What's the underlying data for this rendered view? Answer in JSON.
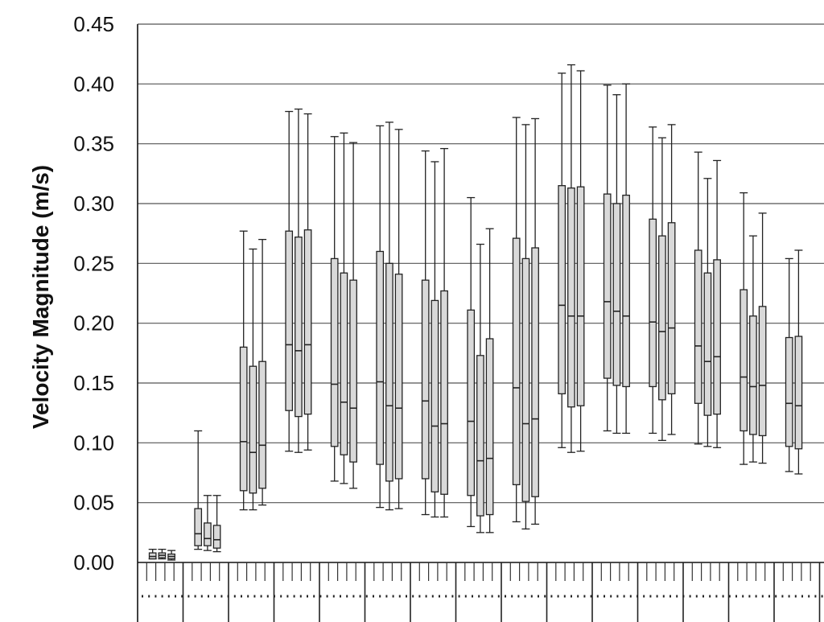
{
  "chart_data": {
    "type": "boxplot",
    "ylabel": "Velocity Magnitude (m/s)",
    "ylim": [
      0,
      0.45
    ],
    "yticks": [
      "0.00",
      "0.05",
      "0.10",
      "0.15",
      "0.20",
      "0.25",
      "0.30",
      "0.35",
      "0.40",
      "0.45"
    ],
    "grid": true,
    "box_color": "#d9d9d9",
    "groups": [
      {
        "boxes": [
          {
            "min": 0.003,
            "q1": 0.003,
            "median": 0.005,
            "q3": 0.008,
            "max": 0.011
          },
          {
            "min": 0.003,
            "q1": 0.004,
            "median": 0.006,
            "q3": 0.008,
            "max": 0.011
          },
          {
            "min": 0.002,
            "q1": 0.003,
            "median": 0.005,
            "q3": 0.007,
            "max": 0.01
          }
        ]
      },
      {
        "boxes": [
          {
            "min": 0.011,
            "q1": 0.014,
            "median": 0.024,
            "q3": 0.045,
            "max": 0.11
          },
          {
            "min": 0.01,
            "q1": 0.014,
            "median": 0.02,
            "q3": 0.033,
            "max": 0.056
          },
          {
            "min": 0.009,
            "q1": 0.012,
            "median": 0.019,
            "q3": 0.031,
            "max": 0.056
          }
        ]
      },
      {
        "boxes": [
          {
            "min": 0.044,
            "q1": 0.06,
            "median": 0.101,
            "q3": 0.18,
            "max": 0.277
          },
          {
            "min": 0.044,
            "q1": 0.058,
            "median": 0.092,
            "q3": 0.164,
            "max": 0.262
          },
          {
            "min": 0.048,
            "q1": 0.062,
            "median": 0.098,
            "q3": 0.168,
            "max": 0.27
          }
        ]
      },
      {
        "boxes": [
          {
            "min": 0.093,
            "q1": 0.127,
            "median": 0.182,
            "q3": 0.277,
            "max": 0.377
          },
          {
            "min": 0.092,
            "q1": 0.122,
            "median": 0.177,
            "q3": 0.272,
            "max": 0.379
          },
          {
            "min": 0.094,
            "q1": 0.124,
            "median": 0.182,
            "q3": 0.278,
            "max": 0.375
          }
        ]
      },
      {
        "boxes": [
          {
            "min": 0.068,
            "q1": 0.097,
            "median": 0.149,
            "q3": 0.254,
            "max": 0.356
          },
          {
            "min": 0.066,
            "q1": 0.09,
            "median": 0.134,
            "q3": 0.242,
            "max": 0.359
          },
          {
            "min": 0.062,
            "q1": 0.084,
            "median": 0.129,
            "q3": 0.236,
            "max": 0.351
          }
        ]
      },
      {
        "boxes": [
          {
            "min": 0.046,
            "q1": 0.082,
            "median": 0.151,
            "q3": 0.26,
            "max": 0.365
          },
          {
            "min": 0.044,
            "q1": 0.068,
            "median": 0.131,
            "q3": 0.25,
            "max": 0.368
          },
          {
            "min": 0.045,
            "q1": 0.07,
            "median": 0.129,
            "q3": 0.241,
            "max": 0.362
          }
        ]
      },
      {
        "boxes": [
          {
            "min": 0.04,
            "q1": 0.07,
            "median": 0.135,
            "q3": 0.236,
            "max": 0.344
          },
          {
            "min": 0.038,
            "q1": 0.059,
            "median": 0.114,
            "q3": 0.219,
            "max": 0.335
          },
          {
            "min": 0.038,
            "q1": 0.057,
            "median": 0.116,
            "q3": 0.227,
            "max": 0.346
          }
        ]
      },
      {
        "boxes": [
          {
            "min": 0.03,
            "q1": 0.056,
            "median": 0.118,
            "q3": 0.211,
            "max": 0.305
          },
          {
            "min": 0.025,
            "q1": 0.039,
            "median": 0.085,
            "q3": 0.173,
            "max": 0.266
          },
          {
            "min": 0.025,
            "q1": 0.04,
            "median": 0.087,
            "q3": 0.187,
            "max": 0.279
          }
        ]
      },
      {
        "boxes": [
          {
            "min": 0.034,
            "q1": 0.065,
            "median": 0.146,
            "q3": 0.271,
            "max": 0.372
          },
          {
            "min": 0.028,
            "q1": 0.051,
            "median": 0.116,
            "q3": 0.254,
            "max": 0.366
          },
          {
            "min": 0.032,
            "q1": 0.055,
            "median": 0.12,
            "q3": 0.263,
            "max": 0.371
          }
        ]
      },
      {
        "boxes": [
          {
            "min": 0.096,
            "q1": 0.141,
            "median": 0.215,
            "q3": 0.315,
            "max": 0.409
          },
          {
            "min": 0.092,
            "q1": 0.13,
            "median": 0.206,
            "q3": 0.313,
            "max": 0.416
          },
          {
            "min": 0.093,
            "q1": 0.131,
            "median": 0.206,
            "q3": 0.314,
            "max": 0.411
          }
        ]
      },
      {
        "boxes": [
          {
            "min": 0.11,
            "q1": 0.154,
            "median": 0.218,
            "q3": 0.308,
            "max": 0.399
          },
          {
            "min": 0.108,
            "q1": 0.148,
            "median": 0.21,
            "q3": 0.3,
            "max": 0.391
          },
          {
            "min": 0.108,
            "q1": 0.147,
            "median": 0.206,
            "q3": 0.307,
            "max": 0.4
          }
        ]
      },
      {
        "boxes": [
          {
            "min": 0.108,
            "q1": 0.147,
            "median": 0.201,
            "q3": 0.287,
            "max": 0.364
          },
          {
            "min": 0.102,
            "q1": 0.136,
            "median": 0.193,
            "q3": 0.273,
            "max": 0.355
          },
          {
            "min": 0.107,
            "q1": 0.141,
            "median": 0.196,
            "q3": 0.284,
            "max": 0.366
          }
        ]
      },
      {
        "boxes": [
          {
            "min": 0.099,
            "q1": 0.133,
            "median": 0.181,
            "q3": 0.261,
            "max": 0.343
          },
          {
            "min": 0.097,
            "q1": 0.123,
            "median": 0.168,
            "q3": 0.242,
            "max": 0.321
          },
          {
            "min": 0.096,
            "q1": 0.124,
            "median": 0.172,
            "q3": 0.253,
            "max": 0.336
          }
        ]
      },
      {
        "boxes": [
          {
            "min": 0.082,
            "q1": 0.11,
            "median": 0.155,
            "q3": 0.228,
            "max": 0.309
          },
          {
            "min": 0.084,
            "q1": 0.107,
            "median": 0.147,
            "q3": 0.206,
            "max": 0.273
          },
          {
            "min": 0.083,
            "q1": 0.106,
            "median": 0.148,
            "q3": 0.214,
            "max": 0.292
          }
        ]
      },
      {
        "boxes": [
          {
            "min": 0.076,
            "q1": 0.097,
            "median": 0.133,
            "q3": 0.188,
            "max": 0.254
          },
          {
            "min": 0.074,
            "q1": 0.095,
            "median": 0.131,
            "q3": 0.189,
            "max": 0.261
          }
        ]
      }
    ]
  }
}
